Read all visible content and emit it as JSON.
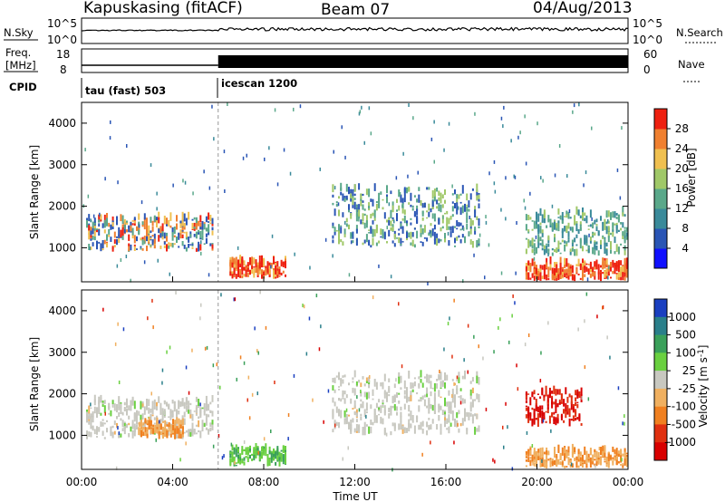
{
  "header": {
    "station": "Kapuskasing (fitACF)",
    "beam": "Beam 07",
    "date": "04/Aug/2013"
  },
  "status_panels": {
    "nsky_label": "N.Sky",
    "nsearch_label": "N.Search",
    "nsky_ticks": [
      "10^5",
      "10^0"
    ],
    "nsearch_ticks": [
      "10^5",
      "10^0"
    ],
    "freq_label_line1": "Freq.",
    "freq_label_line2": "[MHz]",
    "freq_ticks": [
      "18",
      "8"
    ],
    "nave_label": "Nave",
    "nave_ticks": [
      "60",
      "0"
    ],
    "cpid_label": "CPID",
    "cpid_modes": [
      {
        "name": "tau (fast) 503",
        "start_hour": 0
      },
      {
        "name": "icescan 1200",
        "start_hour": 6
      }
    ]
  },
  "chart_data": [
    {
      "type": "heatmap",
      "title": "",
      "xlabel": "",
      "ylabel": "Slant Range [km]",
      "xlim": [
        0,
        24
      ],
      "ylim": [
        180,
        4500
      ],
      "yticks": [
        "1000",
        "2000",
        "3000",
        "4000"
      ],
      "colorbar": {
        "label": "Power [dB]",
        "ticks": [
          "4",
          "8",
          "12",
          "16",
          "20",
          "24",
          "28"
        ],
        "colors": [
          "#1010ff",
          "#2a55b5",
          "#3a8a9a",
          "#5aa88a",
          "#a0c868",
          "#f0c050",
          "#f08030",
          "#ee2010"
        ]
      },
      "regions": [
        {
          "t": [
            0.2,
            5.8
          ],
          "r": [
            900,
            1700
          ],
          "level": "mixed-high"
        },
        {
          "t": [
            6.5,
            9.0
          ],
          "r": [
            250,
            650
          ],
          "level": "high"
        },
        {
          "t": [
            11.0,
            17.5
          ],
          "r": [
            1000,
            2400
          ],
          "level": "mixed"
        },
        {
          "t": [
            19.5,
            24.0
          ],
          "r": [
            200,
            600
          ],
          "level": "high"
        },
        {
          "t": [
            19.5,
            24.0
          ],
          "r": [
            800,
            1800
          ],
          "level": "medium"
        }
      ]
    },
    {
      "type": "heatmap",
      "title": "",
      "xlabel": "Time UT",
      "ylabel": "Slant Range [km]",
      "xlim": [
        0,
        24
      ],
      "ylim": [
        180,
        4500
      ],
      "xticks": [
        "00:00",
        "04:00",
        "08:00",
        "12:00",
        "16:00",
        "20:00",
        "00:00"
      ],
      "yticks": [
        "1000",
        "2000",
        "3000",
        "4000"
      ],
      "colorbar": {
        "label": "Velocity [m s^-1]",
        "ticks": [
          "1000",
          "500",
          "100",
          "25",
          "-25",
          "-100",
          "-500",
          "-1000"
        ],
        "colors": [
          "#1a3fc0",
          "#2a7f8a",
          "#3aa05a",
          "#6ad040",
          "#c8c8c0",
          "#f0b060",
          "#f08020",
          "#e03010",
          "#d80000"
        ]
      },
      "regions": [
        {
          "t": [
            0.2,
            5.8
          ],
          "r": [
            900,
            1800
          ],
          "level": "near-zero"
        },
        {
          "t": [
            2.5,
            4.5
          ],
          "r": [
            900,
            1300
          ],
          "level": "negative"
        },
        {
          "t": [
            6.5,
            9.0
          ],
          "r": [
            250,
            650
          ],
          "level": "positive"
        },
        {
          "t": [
            11.0,
            17.5
          ],
          "r": [
            1000,
            2400
          ],
          "level": "near-zero"
        },
        {
          "t": [
            19.5,
            24.0
          ],
          "r": [
            200,
            600
          ],
          "level": "negative"
        },
        {
          "t": [
            19.5,
            22.0
          ],
          "r": [
            1200,
            2000
          ],
          "level": "strong-negative"
        }
      ]
    }
  ]
}
